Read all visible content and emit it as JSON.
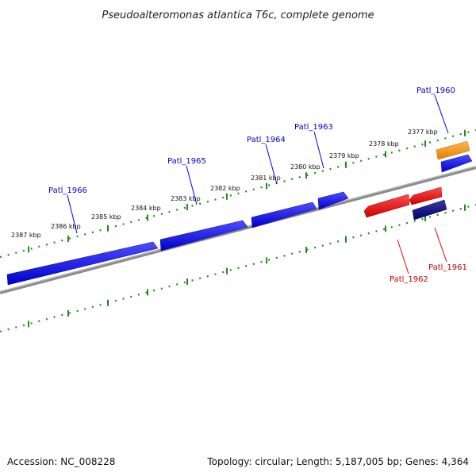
{
  "title": "Pseudoalteromonas atlantica T6c, complete genome",
  "footer": {
    "accession": "Accession: NC_008228",
    "summary": "Topology: circular; Length: 5,187,005 bp; Genes: 4,364"
  },
  "colors": {
    "backbone": "#888888",
    "tick": "#228b22",
    "forward_gene": "#0000ee",
    "reverse_gene": "#ee0000",
    "orange_gene": "#ff9900",
    "navy_gene": "#000080",
    "forward_label": "#0000cc",
    "reverse_label": "#cc0000"
  },
  "scale_labels": [
    "2377 kbp",
    "2378 kbp",
    "2379 kbp",
    "2380 kbp",
    "2381 kbp",
    "2382 kbp",
    "2383 kbp",
    "2384 kbp",
    "2385 kbp",
    "2386 kbp",
    "2387 kbp"
  ],
  "gene_labels": {
    "forward": [
      "Patl_1960",
      "Patl_1963",
      "Patl_1964",
      "Patl_1965",
      "Patl_1966"
    ],
    "reverse": [
      "Patl_1961",
      "Patl_1962"
    ]
  }
}
